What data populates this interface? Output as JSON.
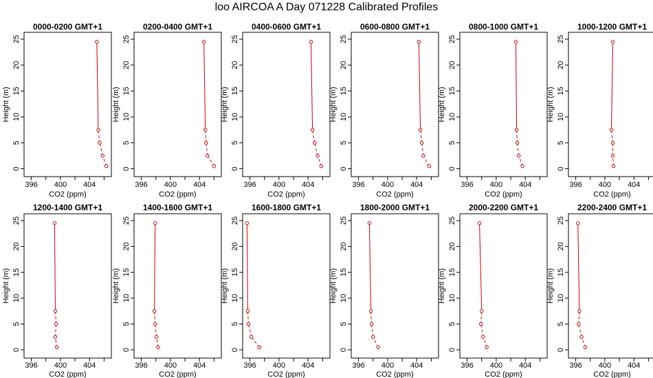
{
  "title": "loo AIRCOA A  Day 071228  Calibrated Profiles",
  "chart_data": {
    "type": "line",
    "xlabel": "CO2 (ppm)",
    "ylabel": "Height (m)",
    "xlim": [
      395,
      407
    ],
    "ylim": [
      0,
      25
    ],
    "xticks": [
      "396",
      "400",
      "404"
    ],
    "yticks": [
      "0",
      "5",
      "10",
      "15",
      "20",
      "25"
    ],
    "heights": [
      0.5,
      2.5,
      5,
      7.5,
      24.5
    ],
    "line_color": "#cc0000",
    "panels": [
      {
        "title": "0000-0200 GMT+1",
        "values": [
          406.3,
          405.8,
          405.4,
          405.2,
          405.0
        ]
      },
      {
        "title": "0200-0400 GMT+1",
        "values": [
          406.0,
          405.1,
          404.9,
          404.8,
          404.6
        ]
      },
      {
        "title": "0400-0600 GMT+1",
        "values": [
          405.8,
          405.3,
          404.9,
          404.6,
          404.4
        ]
      },
      {
        "title": "0600-0800 GMT+1",
        "values": [
          405.7,
          404.9,
          404.7,
          404.5,
          404.3
        ]
      },
      {
        "title": "0800-1000 GMT+1",
        "values": [
          403.6,
          403.1,
          402.9,
          402.8,
          402.7
        ]
      },
      {
        "title": "1000-1200 GMT+1",
        "values": [
          401.2,
          401.1,
          401.1,
          400.9,
          401.1
        ]
      },
      {
        "title": "1200-1400 GMT+1",
        "values": [
          399.5,
          399.3,
          399.4,
          399.3,
          399.2
        ]
      },
      {
        "title": "1400-1600 GMT+1",
        "values": [
          398.3,
          398.1,
          397.9,
          397.8,
          397.9
        ]
      },
      {
        "title": "1600-1800 GMT+1",
        "values": [
          397.3,
          396.2,
          395.8,
          395.7,
          395.6
        ]
      },
      {
        "title": "1800-2000 GMT+1",
        "values": [
          398.7,
          398.0,
          397.8,
          397.7,
          397.5
        ]
      },
      {
        "title": "2000-2200 GMT+1",
        "values": [
          398.7,
          398.2,
          397.9,
          398.0,
          397.7
        ]
      },
      {
        "title": "2200-2400 GMT+1",
        "values": [
          397.3,
          396.8,
          396.4,
          396.5,
          396.3
        ]
      }
    ]
  }
}
